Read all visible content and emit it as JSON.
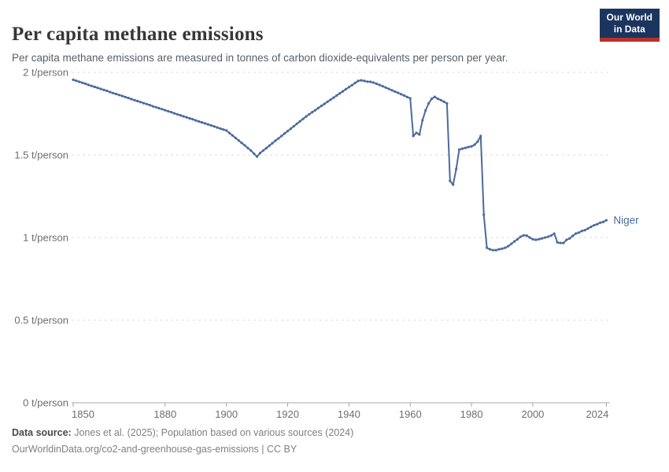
{
  "header": {
    "title": "Per capita methane emissions",
    "subtitle": "Per capita methane emissions are measured in tonnes of carbon dioxide-equivalents per person per year."
  },
  "logo": {
    "line1": "Our World",
    "line2": "in Data",
    "bg_color": "#1a355e",
    "accent_color": "#b8312a"
  },
  "chart_data": {
    "type": "line",
    "title": "Per capita methane emissions",
    "unit": "tonnes of CO2-equivalents per person per year",
    "xlabel": "",
    "ylabel": "",
    "xlim": [
      1850,
      2024
    ],
    "ylim": [
      0,
      2.05
    ],
    "grid": "horizontal dashed",
    "legend_position": "end-of-line label",
    "x_ticks": [
      1850,
      1880,
      1900,
      1920,
      1940,
      1960,
      1980,
      2000,
      2024
    ],
    "y_ticks": [
      {
        "value": 2,
        "label": "2 t/person"
      },
      {
        "value": 1.5,
        "label": "1.5 t/person"
      },
      {
        "value": 1,
        "label": "1 t/person"
      },
      {
        "value": 0.5,
        "label": "0.5 t/person"
      },
      {
        "value": 0,
        "label": "0 t/person"
      }
    ],
    "series": [
      {
        "name": "Niger",
        "color": "#4C6A9C",
        "years": [
          1850,
          1851,
          1852,
          1853,
          1854,
          1855,
          1856,
          1857,
          1858,
          1859,
          1860,
          1861,
          1862,
          1863,
          1864,
          1865,
          1866,
          1867,
          1868,
          1869,
          1870,
          1871,
          1872,
          1873,
          1874,
          1875,
          1876,
          1877,
          1878,
          1879,
          1880,
          1881,
          1882,
          1883,
          1884,
          1885,
          1886,
          1887,
          1888,
          1889,
          1890,
          1891,
          1892,
          1893,
          1894,
          1895,
          1896,
          1897,
          1898,
          1899,
          1900,
          1901,
          1902,
          1903,
          1904,
          1905,
          1906,
          1907,
          1908,
          1909,
          1910,
          1911,
          1912,
          1913,
          1914,
          1915,
          1916,
          1917,
          1918,
          1919,
          1920,
          1921,
          1922,
          1923,
          1924,
          1925,
          1926,
          1927,
          1928,
          1929,
          1930,
          1931,
          1932,
          1933,
          1934,
          1935,
          1936,
          1937,
          1938,
          1939,
          1940,
          1941,
          1942,
          1943,
          1944,
          1945,
          1946,
          1947,
          1948,
          1949,
          1950,
          1951,
          1952,
          1953,
          1954,
          1955,
          1956,
          1957,
          1958,
          1959,
          1960,
          1961,
          1962,
          1963,
          1964,
          1965,
          1966,
          1967,
          1968,
          1969,
          1970,
          1971,
          1972,
          1973,
          1974,
          1975,
          1976,
          1977,
          1978,
          1979,
          1980,
          1981,
          1982,
          1983,
          1984,
          1985,
          1986,
          1987,
          1988,
          1989,
          1990,
          1991,
          1992,
          1993,
          1994,
          1995,
          1996,
          1997,
          1998,
          1999,
          2000,
          2001,
          2002,
          2003,
          2004,
          2005,
          2006,
          2007,
          2008,
          2009,
          2010,
          2011,
          2012,
          2013,
          2014,
          2015,
          2016,
          2017,
          2018,
          2019,
          2020,
          2021,
          2022,
          2023,
          2024
        ],
        "values": [
          1.955,
          1.949,
          1.943,
          1.937,
          1.931,
          1.924,
          1.918,
          1.912,
          1.906,
          1.9,
          1.894,
          1.888,
          1.881,
          1.875,
          1.869,
          1.863,
          1.857,
          1.851,
          1.845,
          1.838,
          1.832,
          1.826,
          1.82,
          1.814,
          1.808,
          1.802,
          1.795,
          1.789,
          1.783,
          1.777,
          1.771,
          1.765,
          1.759,
          1.752,
          1.746,
          1.74,
          1.734,
          1.728,
          1.722,
          1.716,
          1.709,
          1.703,
          1.697,
          1.691,
          1.685,
          1.679,
          1.673,
          1.666,
          1.66,
          1.654,
          1.648,
          1.633,
          1.618,
          1.603,
          1.588,
          1.573,
          1.558,
          1.542,
          1.527,
          1.508,
          1.49,
          1.512,
          1.527,
          1.541,
          1.556,
          1.571,
          1.586,
          1.6,
          1.615,
          1.63,
          1.645,
          1.659,
          1.674,
          1.689,
          1.704,
          1.718,
          1.733,
          1.746,
          1.759,
          1.771,
          1.784,
          1.797,
          1.809,
          1.822,
          1.835,
          1.847,
          1.86,
          1.873,
          1.885,
          1.898,
          1.911,
          1.923,
          1.936,
          1.948,
          1.952,
          1.948,
          1.944,
          1.943,
          1.938,
          1.931,
          1.924,
          1.916,
          1.908,
          1.9,
          1.892,
          1.884,
          1.876,
          1.868,
          1.86,
          1.851,
          1.843,
          1.615,
          1.634,
          1.624,
          1.71,
          1.77,
          1.812,
          1.84,
          1.852,
          1.84,
          1.832,
          1.822,
          1.812,
          1.343,
          1.32,
          1.414,
          1.533,
          1.538,
          1.543,
          1.548,
          1.552,
          1.562,
          1.581,
          1.615,
          1.138,
          0.938,
          0.929,
          0.924,
          0.924,
          0.929,
          0.933,
          0.938,
          0.948,
          0.962,
          0.976,
          0.99,
          1.005,
          1.014,
          1.012,
          1.0,
          0.99,
          0.986,
          0.99,
          0.995,
          1.0,
          1.005,
          1.013,
          1.024,
          0.971,
          0.967,
          0.967,
          0.986,
          0.995,
          1.01,
          1.024,
          1.03,
          1.04,
          1.045,
          1.055,
          1.065,
          1.075,
          1.081,
          1.09,
          1.095,
          1.105
        ]
      }
    ],
    "end_label": "Niger"
  },
  "footer": {
    "datasource_label": "Data source:",
    "datasource_text": " Jones et al. (2025); Population based on various sources (2024)",
    "license_line": "OurWorldinData.org/co2-and-greenhouse-gas-emissions | CC BY"
  }
}
